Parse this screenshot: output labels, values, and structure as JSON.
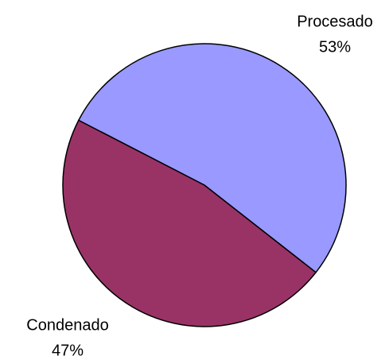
{
  "chart_data": {
    "type": "pie",
    "categories": [
      "Procesado",
      "Condenado"
    ],
    "values": [
      53,
      47
    ],
    "value_labels": [
      "53%",
      "47%"
    ],
    "colors": [
      "#9999ff",
      "#993366"
    ]
  }
}
